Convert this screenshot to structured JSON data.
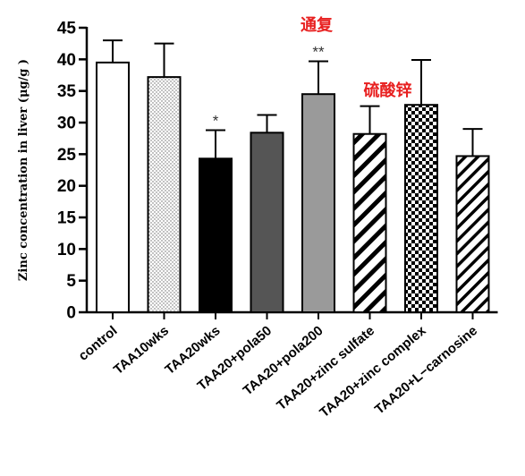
{
  "chart_data": {
    "type": "bar",
    "ylabel": "Zinc concentration in liver (μg/g )",
    "ylim": [
      0,
      45
    ],
    "yticks": [
      0,
      5,
      10,
      15,
      20,
      25,
      30,
      35,
      40,
      45
    ],
    "grid": false,
    "categories": [
      "control",
      "TAA10wks",
      "TAA20wks",
      "TAA20+pola50",
      "TAA20+pola200",
      "TAA20+zinc sulfate",
      "TAA20+zinc complex",
      "TAA20+L−carnosine"
    ],
    "values": [
      39.5,
      37.2,
      24.3,
      28.4,
      34.5,
      28.2,
      32.8,
      24.7
    ],
    "error_upper": [
      43.0,
      42.5,
      28.8,
      31.2,
      39.7,
      32.6,
      39.9,
      29.0
    ],
    "significance": [
      "",
      "",
      "*",
      "",
      "**",
      "",
      "",
      ""
    ],
    "fills": [
      "white",
      "dots",
      "#000000",
      "#555555",
      "#9a9a9a",
      "stripes-wide",
      "checker",
      "stripes-narrow"
    ],
    "annotations": [
      {
        "text": "通复",
        "category": "TAA20+pola200"
      },
      {
        "text": "硫酸锌",
        "category": "TAA20+zinc sulfate"
      }
    ],
    "annotation_color": "#e82020"
  }
}
